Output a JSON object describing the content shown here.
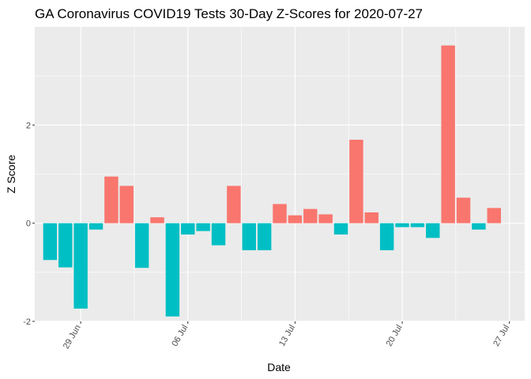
{
  "chart_data": {
    "type": "bar",
    "title": "GA Coronavirus COVID19 Tests 30-Day Z-Scores for 2020-07-27",
    "xlabel": "Date",
    "ylabel": "Z Score",
    "x_ticks": [
      {
        "date": "2020-06-29",
        "label": "29 Jun"
      },
      {
        "date": "2020-07-06",
        "label": "06 Jul"
      },
      {
        "date": "2020-07-13",
        "label": "13 Jul"
      },
      {
        "date": "2020-07-20",
        "label": "20 Jul"
      },
      {
        "date": "2020-07-27",
        "label": "27 Jul"
      }
    ],
    "y_ticks": [
      -2,
      0,
      2
    ],
    "ylim": [
      -2.0,
      4.0
    ],
    "xlim": [
      "2020-06-26",
      "2020-07-28"
    ],
    "grid": true,
    "legend": "none",
    "colors": {
      "positive": "#F8766D",
      "negative": "#00BFC4",
      "panel": "#EBEBEB",
      "grid": "#FFFFFF"
    },
    "bars": [
      {
        "date": "2020-06-27",
        "value": -0.75
      },
      {
        "date": "2020-06-28",
        "value": -0.9
      },
      {
        "date": "2020-06-29",
        "value": -1.74
      },
      {
        "date": "2020-06-30",
        "value": -0.13
      },
      {
        "date": "2020-07-01",
        "value": 0.95
      },
      {
        "date": "2020-07-02",
        "value": 0.76
      },
      {
        "date": "2020-07-03",
        "value": -0.91
      },
      {
        "date": "2020-07-04",
        "value": 0.12
      },
      {
        "date": "2020-07-05",
        "value": -1.9
      },
      {
        "date": "2020-07-06",
        "value": -0.23
      },
      {
        "date": "2020-07-07",
        "value": -0.16
      },
      {
        "date": "2020-07-08",
        "value": -0.45
      },
      {
        "date": "2020-07-09",
        "value": 0.76
      },
      {
        "date": "2020-07-10",
        "value": -0.55
      },
      {
        "date": "2020-07-11",
        "value": -0.55
      },
      {
        "date": "2020-07-12",
        "value": 0.39
      },
      {
        "date": "2020-07-13",
        "value": 0.16
      },
      {
        "date": "2020-07-14",
        "value": 0.29
      },
      {
        "date": "2020-07-15",
        "value": 0.18
      },
      {
        "date": "2020-07-16",
        "value": -0.23
      },
      {
        "date": "2020-07-17",
        "value": 1.7
      },
      {
        "date": "2020-07-18",
        "value": 0.22
      },
      {
        "date": "2020-07-19",
        "value": -0.55
      },
      {
        "date": "2020-07-20",
        "value": -0.08
      },
      {
        "date": "2020-07-21",
        "value": -0.08
      },
      {
        "date": "2020-07-22",
        "value": -0.3
      },
      {
        "date": "2020-07-23",
        "value": 3.62
      },
      {
        "date": "2020-07-24",
        "value": 0.52
      },
      {
        "date": "2020-07-25",
        "value": -0.13
      },
      {
        "date": "2020-07-26",
        "value": 0.31
      }
    ]
  }
}
